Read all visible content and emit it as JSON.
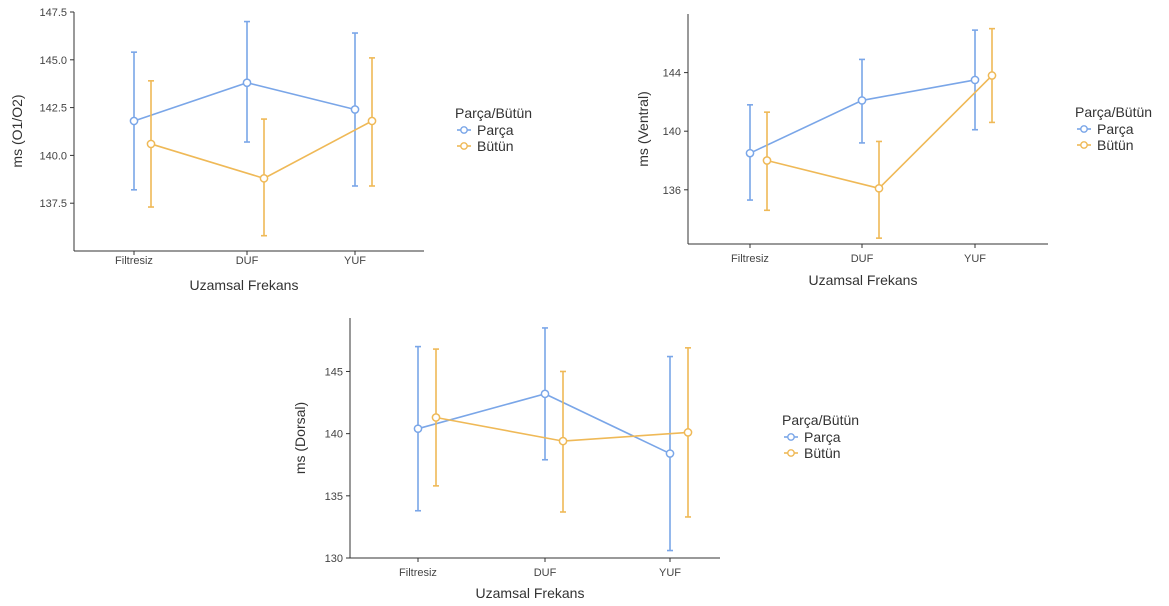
{
  "colors": {
    "parca": "#7aa6e8",
    "butun": "#efb957",
    "axis": "#333333"
  },
  "chart_data": [
    {
      "type": "line",
      "xlabel": "Uzamsal Frekans",
      "ylabel": "ms (O1/O2)",
      "categories": [
        "Filtresiz",
        "DUF",
        "YUF"
      ],
      "yticks": [
        "137.5",
        "140.0",
        "142.5",
        "145.0",
        "147.5"
      ],
      "ylim": [
        135.0,
        147.5
      ],
      "legend_title": "Parça/Bütün",
      "legend_position": "right",
      "series": [
        {
          "name": "Parça",
          "values": [
            141.8,
            143.8,
            142.4
          ],
          "err_low": [
            138.2,
            140.7,
            138.4
          ],
          "err_high": [
            145.4,
            147.0,
            146.4
          ]
        },
        {
          "name": "Bütün",
          "values": [
            140.6,
            138.8,
            141.8
          ],
          "err_low": [
            137.3,
            135.8,
            138.4
          ],
          "err_high": [
            143.9,
            141.9,
            145.1
          ]
        }
      ]
    },
    {
      "type": "line",
      "xlabel": "Uzamsal Frekans",
      "ylabel": "ms (Ventral)",
      "categories": [
        "Filtresiz",
        "DUF",
        "YUF"
      ],
      "yticks": [
        "136",
        "140",
        "144"
      ],
      "ylim": [
        132.3,
        148.0
      ],
      "legend_title": "Parça/Bütün",
      "legend_position": "right",
      "series": [
        {
          "name": "Parça",
          "values": [
            138.5,
            142.1,
            143.5
          ],
          "err_low": [
            135.3,
            139.2,
            140.1
          ],
          "err_high": [
            141.8,
            144.9,
            146.9
          ]
        },
        {
          "name": "Bütün",
          "values": [
            138.0,
            136.1,
            143.8
          ],
          "err_low": [
            134.6,
            132.7,
            140.6
          ],
          "err_high": [
            141.3,
            139.3,
            147.0
          ]
        }
      ]
    },
    {
      "type": "line",
      "xlabel": "Uzamsal Frekans",
      "ylabel": "ms (Dorsal)",
      "categories": [
        "Filtresiz",
        "DUF",
        "YUF"
      ],
      "yticks": [
        "130",
        "135",
        "140",
        "145"
      ],
      "ylim": [
        130.0,
        149.3
      ],
      "legend_title": "Parça/Bütün",
      "legend_position": "right",
      "series": [
        {
          "name": "Parça",
          "values": [
            140.4,
            143.2,
            138.4
          ],
          "err_low": [
            133.8,
            137.9,
            130.6
          ],
          "err_high": [
            147.0,
            148.5,
            146.2
          ]
        },
        {
          "name": "Bütün",
          "values": [
            141.3,
            139.4,
            140.1
          ],
          "err_low": [
            135.8,
            133.7,
            133.3
          ],
          "err_high": [
            146.8,
            145.0,
            146.9
          ]
        }
      ]
    }
  ]
}
